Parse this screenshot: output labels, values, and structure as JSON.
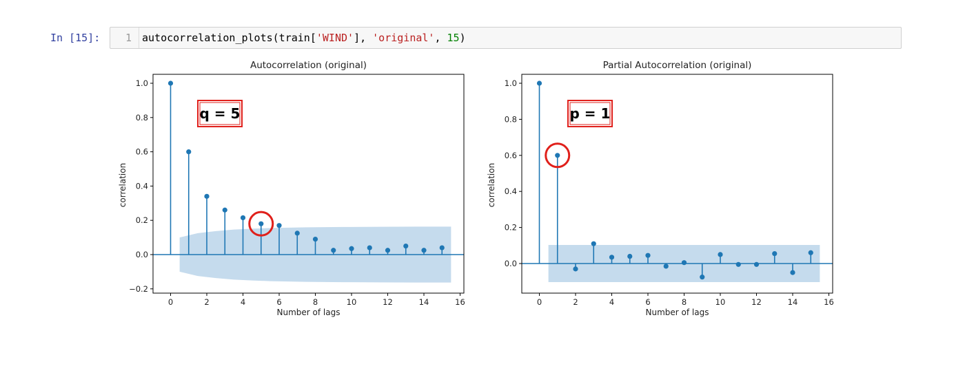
{
  "notebook": {
    "prompt": "In [15]:",
    "line_number": "1",
    "code": {
      "fn": "autocorrelation_plots(train[",
      "arg1": "'WIND'",
      "sep1": "], ",
      "arg2": "'original'",
      "sep2": ", ",
      "arg3": "15",
      "end": ")"
    }
  },
  "colors": {
    "stem": "#1f77b4",
    "band": "#c5dbed",
    "annotation": "#e0201b"
  },
  "chart_data": [
    {
      "type": "stem",
      "title": "Autocorrelation (original)",
      "xlabel": "Number of lags",
      "ylabel": "correlation",
      "xlim": [
        -0.75,
        16.3
      ],
      "ylim": [
        -0.22,
        1.05
      ],
      "xticks": [
        "0",
        "2",
        "4",
        "6",
        "8",
        "10",
        "12",
        "14",
        "16"
      ],
      "yticks": [
        "−0.2",
        "0.0",
        "0.2",
        "0.4",
        "0.6",
        "0.8",
        "1.0"
      ],
      "x": [
        0,
        1,
        2,
        3,
        4,
        5,
        6,
        7,
        8,
        9,
        10,
        11,
        12,
        13,
        14,
        15
      ],
      "values": [
        1.0,
        0.6,
        0.34,
        0.26,
        0.215,
        0.18,
        0.17,
        0.125,
        0.09,
        0.025,
        0.035,
        0.04,
        0.025,
        0.05,
        0.025,
        0.04
      ],
      "confidence_band": {
        "x": [
          0.5,
          1.5,
          2.5,
          3.5,
          4.5,
          5.5,
          7.5,
          9.5,
          11.5,
          13.5,
          15.5
        ],
        "upper": [
          0.1,
          0.125,
          0.137,
          0.146,
          0.151,
          0.155,
          0.159,
          0.161,
          0.162,
          0.163,
          0.163
        ]
      },
      "annotation": {
        "label": "q = 5",
        "circled_lag": 5
      }
    },
    {
      "type": "stem",
      "title": "Partial Autocorrelation (original)",
      "xlabel": "Number of lags",
      "ylabel": "correlation",
      "xlim": [
        -0.75,
        16.3
      ],
      "ylim": [
        -0.15,
        1.05
      ],
      "xticks": [
        "0",
        "2",
        "4",
        "6",
        "8",
        "10",
        "12",
        "14",
        "16"
      ],
      "yticks": [
        "0.0",
        "0.2",
        "0.4",
        "0.6",
        "0.8",
        "1.0"
      ],
      "x": [
        0,
        1,
        2,
        3,
        4,
        5,
        6,
        7,
        8,
        9,
        10,
        11,
        12,
        13,
        14,
        15
      ],
      "values": [
        1.0,
        0.6,
        -0.03,
        0.11,
        0.035,
        0.04,
        0.045,
        -0.015,
        0.005,
        -0.075,
        0.05,
        -0.005,
        -0.005,
        0.055,
        -0.05,
        0.06
      ],
      "confidence_band": {
        "x": [
          0.5,
          15.5
        ],
        "upper": [
          0.103,
          0.103
        ]
      },
      "annotation": {
        "label": "p = 1",
        "circled_lag": 1
      }
    }
  ]
}
